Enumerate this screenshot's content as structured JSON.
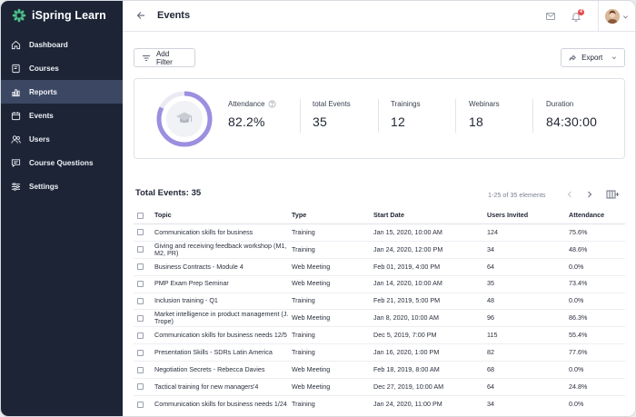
{
  "app": {
    "name": "iSpring Learn",
    "colors": {
      "sidebar": "#1c2436",
      "active": "#3c4863",
      "accent": "#9b8fe0",
      "badge": "#e5484d"
    }
  },
  "sidebar": {
    "items": [
      {
        "label": "Dashboard",
        "icon": "home-icon",
        "active": false
      },
      {
        "label": "Courses",
        "icon": "book-icon",
        "active": false
      },
      {
        "label": "Reports",
        "icon": "bar-chart-icon",
        "active": true
      },
      {
        "label": "Events",
        "icon": "calendar-icon",
        "active": false
      },
      {
        "label": "Users",
        "icon": "users-icon",
        "active": false
      },
      {
        "label": "Course Questions",
        "icon": "chat-icon",
        "active": false
      },
      {
        "label": "Settings",
        "icon": "sliders-icon",
        "active": false
      }
    ]
  },
  "header": {
    "title": "Events",
    "notification_count": "4"
  },
  "toolbar": {
    "filter_label": "Add Filter",
    "export_label": "Export"
  },
  "stats": {
    "attendance": {
      "label": "Attendance",
      "value": "82.2%",
      "fraction": 0.822
    },
    "total_events": {
      "label": "total Events",
      "value": "35"
    },
    "trainings": {
      "label": "Trainings",
      "value": "12"
    },
    "webinars": {
      "label": "Webinars",
      "value": "18"
    },
    "duration": {
      "label": "Duration",
      "value": "84:30:00"
    }
  },
  "table": {
    "title": "Total Events: 35",
    "pagination": "1-25 of 35 elements",
    "columns": [
      "Topic",
      "Type",
      "Start Date",
      "Users Invited",
      "Attendance"
    ],
    "rows": [
      {
        "topic": "Communication skills for business",
        "type": "Training",
        "date": "Jan 15, 2020, 10:00 AM",
        "invited": "124",
        "attendance": "75.6%"
      },
      {
        "topic": "Giving and receiving feedback workshop (M1, M2, PR)",
        "type": "Training",
        "date": "Jan 24, 2020, 12:00 PM",
        "invited": "34",
        "attendance": "48.6%"
      },
      {
        "topic": "Business Contracts - Module 4",
        "type": "Web Meeting",
        "date": "Feb 01, 2019, 4:00 PM",
        "invited": "64",
        "attendance": "0.0%"
      },
      {
        "topic": "PMP Exam Prep Seminar",
        "type": "Web Meeting",
        "date": "Jan 14, 2020, 10:00 AM",
        "invited": "35",
        "attendance": "73.4%"
      },
      {
        "topic": "Inclusion training - Q1",
        "type": "Training",
        "date": "Feb 21, 2019, 5:00 PM",
        "invited": "48",
        "attendance": "0.0%"
      },
      {
        "topic": "Market intelligence in product management (J. Trope)",
        "type": "Web Meeting",
        "date": "Jan 8, 2020, 10:00 AM",
        "invited": "96",
        "attendance": "86.3%"
      },
      {
        "topic": "Communication skills for business needs 12/5",
        "type": "Training",
        "date": "Dec 5, 2019, 7:00 PM",
        "invited": "115",
        "attendance": "55.4%"
      },
      {
        "topic": "Presentation Skills - SDRs Latin America",
        "type": "Training",
        "date": "Jan 16, 2020, 1:00 PM",
        "invited": "82",
        "attendance": "77.6%"
      },
      {
        "topic": "Negotiation Secrets - Rebecca Davies",
        "type": "Web Meeting",
        "date": "Feb 18, 2019, 8:00 AM",
        "invited": "68",
        "attendance": "0.0%"
      },
      {
        "topic": "Tactical training for new managers'4",
        "type": "Web Meeting",
        "date": "Dec 27, 2019, 10:00 AM",
        "invited": "64",
        "attendance": "24.8%"
      },
      {
        "topic": "Communication skills for business needs 1/24",
        "type": "Training",
        "date": "Jan 24, 2020, 11:00 PM",
        "invited": "34",
        "attendance": "0.0%"
      }
    ]
  }
}
